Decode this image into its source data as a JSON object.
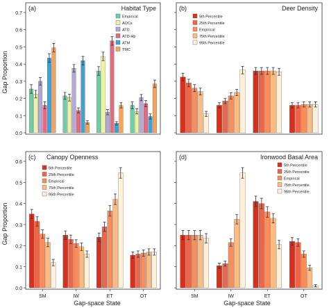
{
  "figure": {
    "ylabel": "Gap Proportion",
    "xlabel": "Gap-space State"
  },
  "chart_data": [
    {
      "type": "bar",
      "panel_label": "(a)",
      "title": "Habitat Type",
      "categories": [
        "SM",
        "IW",
        "ET",
        "OT"
      ],
      "ylim": [
        0,
        0.7
      ],
      "yticks": [
        0.0,
        0.1,
        0.2,
        0.3,
        0.4,
        0.5,
        0.6,
        0.7
      ],
      "legend_position": "top-right",
      "series": [
        {
          "name": "Empirical",
          "color": "#6dcfa5",
          "values": [
            0.255,
            0.215,
            0.36,
            0.16
          ],
          "err": [
            0.025,
            0.02,
            0.025,
            0.02
          ]
        },
        {
          "name": "AOCs",
          "color": "#eef2a4",
          "values": [
            0.225,
            0.205,
            0.445,
            0.125
          ],
          "err": [
            0.022,
            0.02,
            0.025,
            0.015
          ]
        },
        {
          "name": "ATD",
          "color": "#b4a9d6",
          "values": [
            0.3,
            0.375,
            0.12,
            0.205
          ],
          "err": [
            0.022,
            0.022,
            0.015,
            0.018
          ]
        },
        {
          "name": "ATD-Hp",
          "color": "#e8697e",
          "values": [
            0.16,
            0.13,
            0.535,
            0.17
          ],
          "err": [
            0.02,
            0.015,
            0.025,
            0.018
          ]
        },
        {
          "name": "ATM",
          "color": "#3ea3d4",
          "values": [
            0.435,
            0.42,
            0.055,
            0.095
          ],
          "err": [
            0.025,
            0.025,
            0.01,
            0.015
          ]
        },
        {
          "name": "TMC",
          "color": "#f4a45a",
          "values": [
            0.495,
            0.06,
            0.16,
            0.285
          ],
          "err": [
            0.025,
            0.01,
            0.015,
            0.022
          ]
        }
      ]
    },
    {
      "type": "bar",
      "panel_label": "(b)",
      "title": "Deer Density",
      "categories": [
        "SM",
        "IW",
        "ET",
        "OT"
      ],
      "ylim": [
        0,
        0.7
      ],
      "yticks": [
        0.0,
        0.1,
        0.2,
        0.3,
        0.4,
        0.5,
        0.6,
        0.7
      ],
      "legend_position": "top-left",
      "series": [
        {
          "name": "5th Percentile",
          "color": "#d7301f",
          "values": [
            0.325,
            0.16,
            0.36,
            0.16
          ],
          "err": [
            0.022,
            0.015,
            0.02,
            0.015
          ]
        },
        {
          "name": "25th Percentile",
          "color": "#ef6548",
          "values": [
            0.29,
            0.185,
            0.36,
            0.16
          ],
          "err": [
            0.022,
            0.015,
            0.02,
            0.015
          ]
        },
        {
          "name": "Empirical",
          "color": "#fc8d59",
          "values": [
            0.26,
            0.215,
            0.36,
            0.165
          ],
          "err": [
            0.02,
            0.018,
            0.02,
            0.015
          ]
        },
        {
          "name": "75th Percentile",
          "color": "#fdbb84",
          "values": [
            0.24,
            0.235,
            0.36,
            0.165
          ],
          "err": [
            0.02,
            0.018,
            0.02,
            0.015
          ]
        },
        {
          "name": "95th Percentile",
          "color": "#fef0d9",
          "values": [
            0.11,
            0.365,
            0.355,
            0.165
          ],
          "err": [
            0.015,
            0.022,
            0.02,
            0.015
          ]
        }
      ]
    },
    {
      "type": "bar",
      "panel_label": "(c)",
      "title": "Canopy Openness",
      "categories": [
        "SM",
        "IW",
        "ET",
        "OT"
      ],
      "ylim": [
        0,
        0.6
      ],
      "yticks": [
        0.0,
        0.1,
        0.2,
        0.3,
        0.4,
        0.5,
        0.6
      ],
      "legend_position": "top-left",
      "series": [
        {
          "name": "5th Percentile",
          "color": "#d7301f",
          "values": [
            0.35,
            0.25,
            0.24,
            0.155
          ],
          "err": [
            0.022,
            0.02,
            0.02,
            0.015
          ]
        },
        {
          "name": "25th Percentile",
          "color": "#ef6548",
          "values": [
            0.315,
            0.23,
            0.29,
            0.16
          ],
          "err": [
            0.022,
            0.02,
            0.022,
            0.015
          ]
        },
        {
          "name": "Empirical",
          "color": "#fc8d59",
          "values": [
            0.255,
            0.21,
            0.365,
            0.165
          ],
          "err": [
            0.02,
            0.018,
            0.025,
            0.015
          ]
        },
        {
          "name": "75th Percentile",
          "color": "#fdbb84",
          "values": [
            0.215,
            0.195,
            0.42,
            0.17
          ],
          "err": [
            0.02,
            0.018,
            0.025,
            0.015
          ]
        },
        {
          "name": "95th Percentile",
          "color": "#fef0d9",
          "values": [
            0.12,
            0.16,
            0.545,
            0.17
          ],
          "err": [
            0.015,
            0.015,
            0.025,
            0.015
          ]
        }
      ]
    },
    {
      "type": "bar",
      "panel_label": "(d)",
      "title": "Ironwood Basal Area",
      "categories": [
        "SM",
        "IW",
        "ET",
        "OT"
      ],
      "ylim": [
        0,
        0.6
      ],
      "yticks": [
        0.0,
        0.1,
        0.2,
        0.3,
        0.4,
        0.5,
        0.6
      ],
      "legend_position": "top-right",
      "series": [
        {
          "name": "5th Percentile",
          "color": "#d7301f",
          "values": [
            0.25,
            0.105,
            0.41,
            0.22
          ],
          "err": [
            0.022,
            0.012,
            0.025,
            0.018
          ]
        },
        {
          "name": "25th Percentile",
          "color": "#ef6548",
          "values": [
            0.25,
            0.115,
            0.4,
            0.215
          ],
          "err": [
            0.022,
            0.012,
            0.025,
            0.018
          ]
        },
        {
          "name": "Empirical",
          "color": "#fc8d59",
          "values": [
            0.25,
            0.215,
            0.36,
            0.16
          ],
          "err": [
            0.022,
            0.018,
            0.025,
            0.015
          ]
        },
        {
          "name": "75th Percentile",
          "color": "#fdbb84",
          "values": [
            0.25,
            0.325,
            0.33,
            0.095
          ],
          "err": [
            0.022,
            0.022,
            0.022,
            0.012
          ]
        },
        {
          "name": "95th Percentile",
          "color": "#fef0d9",
          "values": [
            0.235,
            0.545,
            0.205,
            0.01
          ],
          "err": [
            0.022,
            0.025,
            0.02,
            0.005
          ]
        }
      ]
    }
  ]
}
